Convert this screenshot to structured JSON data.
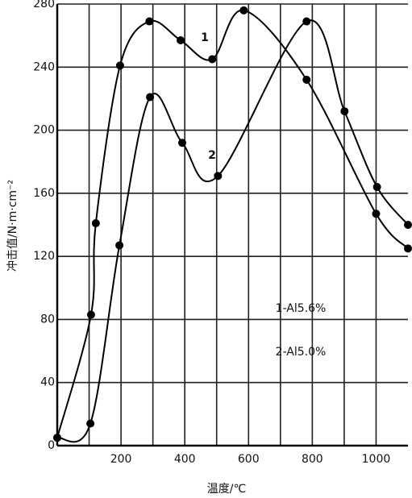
{
  "chart_data": {
    "type": "line",
    "x_label": "温度/℃",
    "y_label": "冲击值/N·m·cm⁻²",
    "xlim": [
      0,
      1100
    ],
    "ylim": [
      0,
      280
    ],
    "xticks": [
      200,
      400,
      600,
      800,
      1000
    ],
    "xminor": [
      100,
      300,
      500,
      700,
      900
    ],
    "yticks": [
      0,
      40,
      80,
      120,
      160,
      200,
      240,
      280
    ],
    "grid": true,
    "series": [
      {
        "name": "1-Al5.6%",
        "label": "1",
        "color": "#000000",
        "x": [
          0,
          106,
          121,
          197,
          289,
          387,
          486,
          585,
          782,
          1000,
          1100
        ],
        "values": [
          5,
          83,
          141,
          241,
          269,
          257,
          245,
          276,
          232,
          147,
          125
        ]
      },
      {
        "name": "2-Al5.0%",
        "label": "2",
        "color": "#000000",
        "x": [
          0,
          104,
          195,
          291,
          392,
          504,
          782,
          901,
          1003,
          1100
        ],
        "values": [
          5,
          14,
          127,
          221,
          192,
          171,
          269,
          212,
          164,
          140
        ]
      }
    ]
  }
}
